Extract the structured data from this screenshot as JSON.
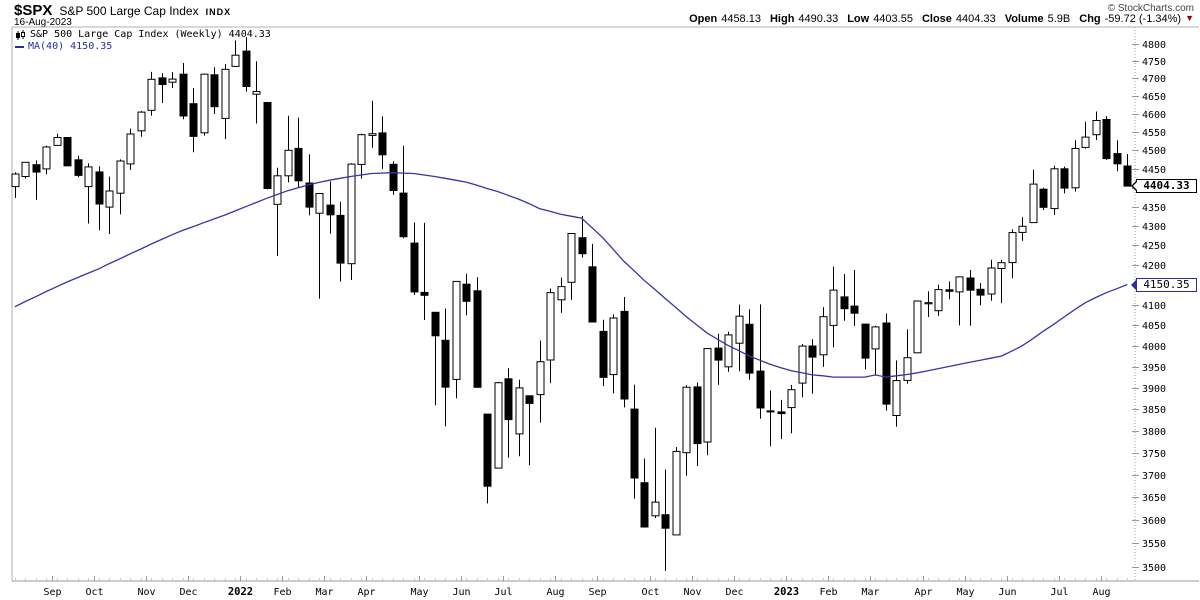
{
  "header": {
    "symbol": "$SPX",
    "name": "S&P 500 Large Cap Index",
    "exchange": "INDX",
    "date": "16-Aug-2023",
    "copyright": "© StockCharts.com",
    "quote": {
      "open_label": "Open",
      "open": "4458.13",
      "high_label": "High",
      "high": "4490.33",
      "low_label": "Low",
      "low": "4403.55",
      "close_label": "Close",
      "close": "4404.33",
      "volume_label": "Volume",
      "volume": "5.9B",
      "chg_label": "Chg",
      "chg": "-59.72 (-1.34%)",
      "direction_icon": "▼"
    }
  },
  "legend": {
    "series_label": "S&P 500 Large Cap Index (Weekly) 4404.33",
    "ma_label": "MA(40) 4150.35"
  },
  "price_tags": {
    "close": "4404.33",
    "ma": "4150.35"
  },
  "colors": {
    "candle": "#000000",
    "ma_line": "#3535a5",
    "axis": "#999999",
    "frame": "#b0b0b0",
    "minor_tick": "#c8c8c8",
    "down_triangle": "#990000",
    "tag_ma_border": "#2a2aa0"
  },
  "chart_data": {
    "type": "candlestick",
    "title": "S&P 500 Large Cap Index (Weekly)",
    "timeframe": "weekly",
    "overlay": "MA(40)",
    "y_axis": {
      "min": 3500,
      "max": 4800,
      "tick_interval": 50,
      "scale": "log",
      "side": "right"
    },
    "x_axis": {
      "month_ticks": [
        {
          "label": "Sep",
          "index": 4,
          "bold": false
        },
        {
          "label": "Oct",
          "index": 8,
          "bold": false
        },
        {
          "label": "Nov",
          "index": 13,
          "bold": false
        },
        {
          "label": "Dec",
          "index": 17,
          "bold": false
        },
        {
          "label": "2022",
          "index": 22,
          "bold": true
        },
        {
          "label": "Feb",
          "index": 26,
          "bold": false
        },
        {
          "label": "Mar",
          "index": 30,
          "bold": false
        },
        {
          "label": "Apr",
          "index": 34,
          "bold": false
        },
        {
          "label": "May",
          "index": 39,
          "bold": false
        },
        {
          "label": "Jun",
          "index": 43,
          "bold": false
        },
        {
          "label": "Jul",
          "index": 47,
          "bold": false
        },
        {
          "label": "Aug",
          "index": 52,
          "bold": false
        },
        {
          "label": "Sep",
          "index": 56,
          "bold": false
        },
        {
          "label": "Oct",
          "index": 61,
          "bold": false
        },
        {
          "label": "Nov",
          "index": 65,
          "bold": false
        },
        {
          "label": "Dec",
          "index": 69,
          "bold": false
        },
        {
          "label": "2023",
          "index": 74,
          "bold": true
        },
        {
          "label": "Feb",
          "index": 78,
          "bold": false
        },
        {
          "label": "Mar",
          "index": 82,
          "bold": false
        },
        {
          "label": "Apr",
          "index": 87,
          "bold": false
        },
        {
          "label": "May",
          "index": 91,
          "bold": false
        },
        {
          "label": "Jun",
          "index": 95,
          "bold": false
        },
        {
          "label": "Jul",
          "index": 100,
          "bold": false
        },
        {
          "label": "Aug",
          "index": 104,
          "bold": false
        }
      ]
    },
    "weeks": [
      [
        "2021-08-06",
        4402.95,
        4440.82,
        4373.0,
        4436.52
      ],
      [
        "2021-08-13",
        4429.89,
        4468.37,
        4424.73,
        4468.0
      ],
      [
        "2021-08-20",
        4461.65,
        4473.13,
        4367.73,
        4441.67
      ],
      [
        "2021-08-27",
        4450.29,
        4513.33,
        4436.19,
        4509.37
      ],
      [
        "2021-09-03",
        4513.76,
        4545.85,
        4513.76,
        4535.43
      ],
      [
        "2021-09-10",
        4535.38,
        4535.38,
        4457.66,
        4458.58
      ],
      [
        "2021-09-17",
        4474.81,
        4485.87,
        4427.76,
        4432.99
      ],
      [
        "2021-09-24",
        4402.95,
        4465.4,
        4305.91,
        4455.48
      ],
      [
        "2021-10-01",
        4442.12,
        4457.3,
        4288.52,
        4357.04
      ],
      [
        "2021-10-08",
        4348.84,
        4429.97,
        4278.94,
        4391.34
      ],
      [
        "2021-10-15",
        4385.44,
        4475.82,
        4329.92,
        4471.37
      ],
      [
        "2021-10-22",
        4463.72,
        4559.67,
        4447.47,
        4544.9
      ],
      [
        "2021-10-29",
        4553.69,
        4608.08,
        4537.36,
        4605.38
      ],
      [
        "2021-11-05",
        4610.62,
        4718.5,
        4595.06,
        4697.53
      ],
      [
        "2021-11-12",
        4701.48,
        4714.92,
        4630.86,
        4682.85
      ],
      [
        "2021-11-19",
        4689.3,
        4717.75,
        4672.78,
        4697.96
      ],
      [
        "2021-11-26",
        4712.0,
        4743.83,
        4585.43,
        4594.62
      ],
      [
        "2021-12-03",
        4628.75,
        4672.95,
        4495.12,
        4538.43
      ],
      [
        "2021-12-10",
        4548.37,
        4713.57,
        4540.51,
        4712.02
      ],
      [
        "2021-12-17",
        4710.3,
        4731.99,
        4600.22,
        4620.64
      ],
      [
        "2021-12-23",
        4587.9,
        4740.74,
        4531.1,
        4725.79
      ],
      [
        "2021-12-31",
        4733.99,
        4808.93,
        4733.99,
        4766.18
      ],
      [
        "2022-01-07",
        4778.14,
        4818.62,
        4662.74,
        4677.03
      ],
      [
        "2022-01-14",
        4655.34,
        4748.83,
        4573.84,
        4662.85
      ],
      [
        "2022-01-21",
        4632.24,
        4632.24,
        4395.34,
        4397.94
      ],
      [
        "2022-01-28",
        4356.32,
        4453.23,
        4222.62,
        4431.85
      ],
      [
        "2022-02-04",
        4431.79,
        4595.31,
        4414.02,
        4500.53
      ],
      [
        "2022-02-11",
        4505.75,
        4590.03,
        4401.41,
        4418.64
      ],
      [
        "2022-02-18",
        4412.61,
        4489.55,
        4327.22,
        4348.87
      ],
      [
        "2022-02-25",
        4332.74,
        4385.34,
        4114.65,
        4384.65
      ],
      [
        "2022-03-04",
        4354.17,
        4416.78,
        4279.54,
        4328.87
      ],
      [
        "2022-03-11",
        4327.01,
        4362.7,
        4157.87,
        4204.31
      ],
      [
        "2022-03-18",
        4202.75,
        4465.4,
        4161.72,
        4463.12
      ],
      [
        "2022-03-25",
        4462.4,
        4546.03,
        4424.3,
        4543.06
      ],
      [
        "2022-04-01",
        4541.09,
        4637.3,
        4507.57,
        4545.86
      ],
      [
        "2022-04-08",
        4547.97,
        4593.45,
        4450.3,
        4488.28
      ],
      [
        "2022-04-14",
        4462.64,
        4471.0,
        4381.34,
        4392.59
      ],
      [
        "2022-04-22",
        4385.63,
        4512.94,
        4267.62,
        4271.78
      ],
      [
        "2022-04-29",
        4255.34,
        4308.45,
        4124.28,
        4131.93
      ],
      [
        "2022-05-06",
        4130.61,
        4307.66,
        4062.51,
        4123.34
      ],
      [
        "2022-05-13",
        4081.27,
        4081.27,
        3858.87,
        4023.89
      ],
      [
        "2022-05-20",
        4013.02,
        4090.72,
        3810.32,
        3901.36
      ],
      [
        "2022-05-27",
        3919.42,
        4158.49,
        3875.13,
        4158.24
      ],
      [
        "2022-06-03",
        4151.09,
        4177.51,
        4073.85,
        4108.54
      ],
      [
        "2022-06-10",
        4134.72,
        4168.78,
        3900.16,
        3900.86
      ],
      [
        "2022-06-17",
        3838.15,
        3838.15,
        3636.87,
        3674.84
      ],
      [
        "2022-06-24",
        3715.31,
        3913.65,
        3715.31,
        3911.74
      ],
      [
        "2022-07-01",
        3920.76,
        3945.86,
        3738.67,
        3825.33
      ],
      [
        "2022-07-08",
        3792.61,
        3918.5,
        3742.06,
        3899.38
      ],
      [
        "2022-07-15",
        3880.94,
        3880.94,
        3721.56,
        3863.16
      ],
      [
        "2022-07-22",
        3883.79,
        4012.44,
        3818.63,
        3961.63
      ],
      [
        "2022-07-29",
        3965.72,
        4140.15,
        3910.74,
        4130.29
      ],
      [
        "2022-08-05",
        4112.38,
        4167.66,
        4079.81,
        4145.19
      ],
      [
        "2022-08-12",
        4155.93,
        4280.47,
        4112.09,
        4280.15
      ],
      [
        "2022-08-19",
        4269.37,
        4325.28,
        4218.7,
        4228.48
      ],
      [
        "2022-08-26",
        4195.08,
        4253.31,
        4057.66,
        4057.66
      ],
      [
        "2022-09-02",
        4034.58,
        4062.99,
        3903.65,
        3924.26
      ],
      [
        "2022-09-09",
        3930.89,
        4076.81,
        3886.75,
        4067.36
      ],
      [
        "2022-09-16",
        4083.67,
        4119.28,
        3853.88,
        3873.33
      ],
      [
        "2022-09-23",
        3849.91,
        3907.07,
        3647.47,
        3693.23
      ],
      [
        "2022-09-30",
        3682.72,
        3736.74,
        3584.13,
        3585.62
      ],
      [
        "2022-10-07",
        3609.78,
        3806.91,
        3604.93,
        3639.66
      ],
      [
        "2022-10-14",
        3612.29,
        3712.0,
        3491.58,
        3583.07
      ],
      [
        "2022-10-21",
        3568.45,
        3762.79,
        3568.45,
        3752.75
      ],
      [
        "2022-10-28",
        3749.86,
        3905.42,
        3698.15,
        3901.06
      ],
      [
        "2022-11-04",
        3901.79,
        3911.79,
        3719.89,
        3770.55
      ],
      [
        "2022-11-11",
        3774.13,
        3993.81,
        3744.22,
        3992.93
      ],
      [
        "2022-11-18",
        3994.15,
        4028.84,
        3906.54,
        3965.34
      ],
      [
        "2022-11-25",
        3949.27,
        4034.02,
        3937.65,
        4026.12
      ],
      [
        "2022-12-02",
        4005.94,
        4100.51,
        3938.58,
        4071.7
      ],
      [
        "2022-12-09",
        4052.02,
        4088.47,
        3918.39,
        3934.38
      ],
      [
        "2022-12-16",
        3939.05,
        4100.96,
        3827.91,
        3852.36
      ],
      [
        "2022-12-23",
        3845.62,
        3893.28,
        3764.49,
        3844.82
      ],
      [
        "2022-12-30",
        3843.34,
        3871.16,
        3780.78,
        3839.5
      ],
      [
        "2023-01-06",
        3853.29,
        3906.19,
        3794.33,
        3895.08
      ],
      [
        "2023-01-13",
        3910.82,
        4003.95,
        3877.29,
        3999.09
      ],
      [
        "2023-01-20",
        3999.28,
        4015.39,
        3885.54,
        3972.61
      ],
      [
        "2023-01-27",
        3978.14,
        4094.21,
        3949.06,
        4070.56
      ],
      [
        "2023-02-03",
        4049.27,
        4195.44,
        3995.97,
        4136.48
      ],
      [
        "2023-02-10",
        4119.57,
        4176.54,
        4060.79,
        4090.46
      ],
      [
        "2023-02-17",
        4096.62,
        4186.92,
        4047.95,
        4079.09
      ],
      [
        "2023-02-24",
        4052.35,
        4052.35,
        3943.08,
        3970.04
      ],
      [
        "2023-03-03",
        3992.36,
        4048.29,
        3928.16,
        4045.64
      ],
      [
        "2023-03-10",
        4055.15,
        4078.49,
        3846.32,
        3861.59
      ],
      [
        "2023-03-17",
        3835.12,
        3964.46,
        3808.86,
        3916.64
      ],
      [
        "2023-03-24",
        3916.95,
        4039.49,
        3909.16,
        3970.99
      ],
      [
        "2023-03-31",
        3982.93,
        4110.75,
        3982.93,
        4109.31
      ],
      [
        "2023-04-06",
        4102.2,
        4133.13,
        4069.84,
        4105.02
      ],
      [
        "2023-04-14",
        4085.2,
        4150.26,
        4072.55,
        4137.64
      ],
      [
        "2023-04-21",
        4137.17,
        4157.83,
        4113.86,
        4133.52
      ],
      [
        "2023-04-28",
        4132.03,
        4170.06,
        4049.35,
        4169.48
      ],
      [
        "2023-05-05",
        4166.79,
        4186.92,
        4048.28,
        4136.25
      ],
      [
        "2023-05-12",
        4138.5,
        4154.28,
        4098.92,
        4124.08
      ],
      [
        "2023-05-19",
        4126.76,
        4212.91,
        4109.86,
        4191.98
      ],
      [
        "2023-05-26",
        4190.78,
        4212.87,
        4103.98,
        4205.45
      ],
      [
        "2023-06-02",
        4205.45,
        4290.67,
        4166.15,
        4282.37
      ],
      [
        "2023-06-09",
        4282.99,
        4322.62,
        4261.07,
        4298.86
      ],
      [
        "2023-06-16",
        4308.32,
        4448.47,
        4308.32,
        4409.59
      ],
      [
        "2023-06-23",
        4396.11,
        4400.15,
        4341.34,
        4348.33
      ],
      [
        "2023-06-30",
        4344.84,
        4458.48,
        4328.08,
        4450.38
      ],
      [
        "2023-07-07",
        4450.48,
        4456.46,
        4385.05,
        4398.95
      ],
      [
        "2023-07-14",
        4399.89,
        4527.76,
        4389.92,
        4505.42
      ],
      [
        "2023-07-21",
        4508.31,
        4578.43,
        4504.9,
        4536.34
      ],
      [
        "2023-07-28",
        4543.16,
        4607.07,
        4528.56,
        4582.23
      ],
      [
        "2023-08-04",
        4584.82,
        4594.22,
        4474.55,
        4478.03
      ],
      [
        "2023-08-11",
        4491.58,
        4527.37,
        4443.98,
        4464.05
      ],
      [
        "2023-08-18",
        4458.13,
        4490.33,
        4403.55,
        4404.33
      ]
    ],
    "ma40": [
      4095,
      4108,
      4120,
      4133,
      4145,
      4157,
      4168,
      4179,
      4190,
      4203,
      4215,
      4228,
      4240,
      4253,
      4265,
      4277,
      4288,
      4298,
      4308,
      4318,
      4328,
      4339,
      4350,
      4361,
      4372,
      4382,
      4392,
      4400,
      4408,
      4414,
      4420,
      4425,
      4430,
      4434,
      4438,
      4439,
      4440,
      4439,
      4438,
      4434,
      4430,
      4425,
      4420,
      4415,
      4407,
      4398,
      4390,
      4380,
      4370,
      4358,
      4345,
      4338,
      4330,
      4325,
      4320,
      4295,
      4270,
      4240,
      4210,
      4185,
      4160,
      4138,
      4115,
      4093,
      4070,
      4050,
      4030,
      4015,
      4000,
      3988,
      3975,
      3965,
      3955,
      3947,
      3940,
      3935,
      3930,
      3928,
      3925,
      3925,
      3925,
      3925,
      3930,
      3925,
      3928,
      3931,
      3935,
      3940,
      3945,
      3950,
      3955,
      3960,
      3965,
      3970,
      3975,
      3987,
      4000,
      4017,
      4035,
      4052,
      4070,
      4088,
      4105,
      4118,
      4130,
      4140,
      4150.35
    ],
    "ma40_last": 4150.35,
    "close_last": 4404.33
  }
}
